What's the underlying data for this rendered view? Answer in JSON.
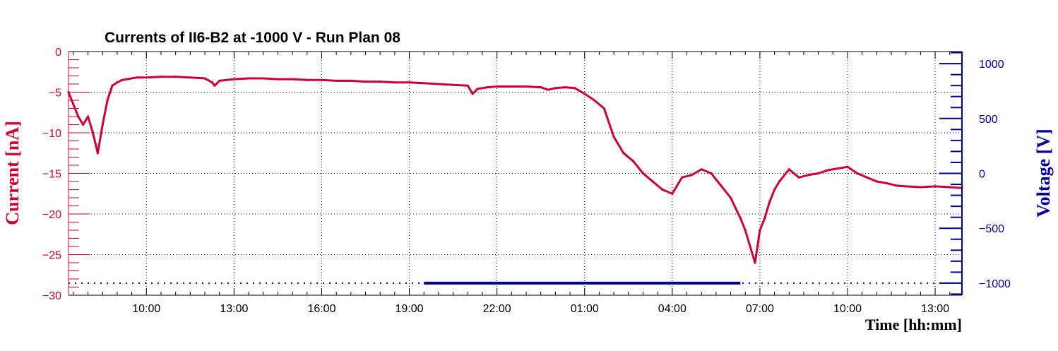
{
  "chart_data": {
    "type": "line",
    "title": "Currents of II6-B2 at -1000 V - Run Plan 08",
    "xlabel": "Time [hh:mm]",
    "ylabel": "Current [nA]",
    "y2label": "Voltage [V]",
    "xlim": [
      "07:20",
      "13:55 (+1 day)"
    ],
    "ylim": [
      -30,
      0
    ],
    "y2lim": [
      -1110,
      1110
    ],
    "x_tick_labels": [
      "10:00",
      "13:00",
      "16:00",
      "19:00",
      "22:00",
      "01:00",
      "04:00",
      "07:00",
      "10:00",
      "13:00"
    ],
    "y_tick_labels": [
      "0",
      "−5",
      "−10",
      "−15",
      "−20",
      "−25",
      "−30"
    ],
    "y2_tick_labels": [
      "1000",
      "500",
      "0",
      "−500",
      "−1000"
    ],
    "grid": true,
    "colors": {
      "current": "#cc0033",
      "voltage": "#000099",
      "axis": "#000000"
    },
    "series": [
      {
        "axis": "left",
        "x": [
          "07:20",
          "07:30",
          "07:40",
          "07:50",
          "08:00",
          "08:10",
          "08:20",
          "08:30",
          "08:40",
          "08:50",
          "09:00",
          "09:10",
          "09:20",
          "09:40",
          "10:00",
          "10:30",
          "11:00",
          "11:30",
          "12:00",
          "12:15",
          "12:20",
          "12:30",
          "13:00",
          "13:30",
          "14:00",
          "14:30",
          "15:00",
          "15:30",
          "16:00",
          "16:30",
          "17:00",
          "17:30",
          "18:00",
          "18:30",
          "19:00",
          "19:30",
          "20:00",
          "20:30",
          "21:00",
          "21:10",
          "21:20",
          "21:40",
          "22:00",
          "22:30",
          "23:00",
          "23:30",
          "23:45",
          "00:00",
          "00:20",
          "00:40",
          "01:00",
          "01:20",
          "01:40",
          "02:00",
          "02:10",
          "02:20",
          "02:40",
          "03:00",
          "03:20",
          "03:40",
          "04:00",
          "04:20",
          "04:40",
          "05:00",
          "05:20",
          "05:40",
          "06:00",
          "06:20",
          "06:30",
          "06:40",
          "06:50",
          "06:55",
          "07:00",
          "07:10",
          "07:20",
          "07:30",
          "07:40",
          "08:00",
          "08:20",
          "08:40",
          "09:00",
          "09:20",
          "09:40",
          "10:00",
          "10:20",
          "10:40",
          "11:00",
          "11:20",
          "11:40",
          "12:00",
          "12:30",
          "13:00",
          "13:30",
          "13:55"
        ],
        "y": [
          -5,
          -6.5,
          -8,
          -9,
          -8,
          -10,
          -12.5,
          -9,
          -6,
          -4.2,
          -3.8,
          -3.5,
          -3.4,
          -3.2,
          -3.2,
          -3.1,
          -3.1,
          -3.2,
          -3.3,
          -3.8,
          -4.2,
          -3.6,
          -3.4,
          -3.3,
          -3.3,
          -3.4,
          -3.4,
          -3.5,
          -3.5,
          -3.6,
          -3.6,
          -3.7,
          -3.7,
          -3.8,
          -3.8,
          -3.9,
          -4,
          -4.1,
          -4.2,
          -5.2,
          -4.6,
          -4.4,
          -4.3,
          -4.3,
          -4.3,
          -4.4,
          -4.7,
          -4.5,
          -4.4,
          -4.5,
          -5.2,
          -6,
          -7,
          -10.5,
          -11.5,
          -12.5,
          -13.5,
          -15,
          -16,
          -17,
          -17.5,
          -15.5,
          -15.2,
          -14.5,
          -15,
          -16.5,
          -18,
          -20.5,
          -22,
          -24,
          -26,
          -24,
          -22,
          -20.5,
          -18.5,
          -17,
          -16,
          -14.5,
          -15.5,
          -15.2,
          -15,
          -14.6,
          -14.4,
          -14.2,
          -15,
          -15.5,
          -16,
          -16.2,
          -16.5,
          -16.6,
          -16.7,
          -16.6,
          -16.7,
          -16.8
        ]
      },
      {
        "axis": "right",
        "x": [
          "07:20",
          "13:55 (+1 day)"
        ],
        "y": [
          -1000,
          -1000
        ]
      }
    ]
  }
}
